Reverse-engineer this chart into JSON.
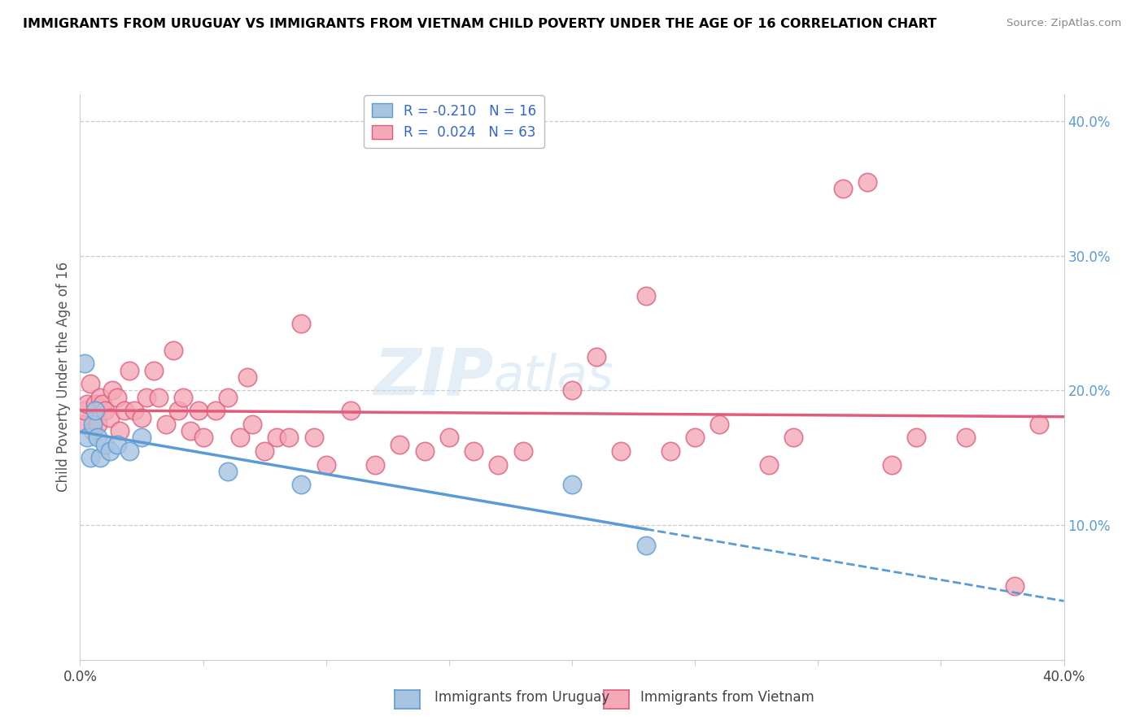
{
  "title": "IMMIGRANTS FROM URUGUAY VS IMMIGRANTS FROM VIETNAM CHILD POVERTY UNDER THE AGE OF 16 CORRELATION CHART",
  "source": "Source: ZipAtlas.com",
  "ylabel": "Child Poverty Under the Age of 16",
  "xlim": [
    0.0,
    0.4
  ],
  "ylim": [
    0.0,
    0.42
  ],
  "yticks_right": [
    0.1,
    0.2,
    0.3,
    0.4
  ],
  "legend_uruguay": "Immigrants from Uruguay",
  "legend_vietnam": "Immigrants from Vietnam",
  "R_uruguay": -0.21,
  "N_uruguay": 16,
  "R_vietnam": 0.024,
  "N_vietnam": 63,
  "color_uruguay": "#a8c4e0",
  "color_vietnam": "#f4a8b8",
  "line_color_uruguay": "#5b9bd5",
  "line_color_vietnam": "#e05c7a",
  "watermark_zip": "ZIP",
  "watermark_atlas": "atlas",
  "uruguay_x": [
    0.002,
    0.003,
    0.004,
    0.005,
    0.006,
    0.007,
    0.008,
    0.01,
    0.012,
    0.015,
    0.02,
    0.025,
    0.06,
    0.09,
    0.2,
    0.23
  ],
  "uruguay_y": [
    0.22,
    0.165,
    0.15,
    0.175,
    0.185,
    0.165,
    0.15,
    0.16,
    0.155,
    0.16,
    0.155,
    0.165,
    0.14,
    0.13,
    0.13,
    0.085
  ],
  "vietnam_x": [
    0.001,
    0.002,
    0.003,
    0.004,
    0.005,
    0.006,
    0.007,
    0.008,
    0.009,
    0.01,
    0.012,
    0.013,
    0.015,
    0.016,
    0.018,
    0.02,
    0.022,
    0.025,
    0.027,
    0.03,
    0.032,
    0.035,
    0.038,
    0.04,
    0.042,
    0.045,
    0.048,
    0.05,
    0.055,
    0.06,
    0.065,
    0.068,
    0.07,
    0.075,
    0.08,
    0.085,
    0.09,
    0.095,
    0.1,
    0.11,
    0.12,
    0.13,
    0.14,
    0.15,
    0.16,
    0.17,
    0.18,
    0.2,
    0.21,
    0.22,
    0.23,
    0.24,
    0.25,
    0.26,
    0.28,
    0.29,
    0.31,
    0.32,
    0.33,
    0.34,
    0.36,
    0.38,
    0.39
  ],
  "vietnam_y": [
    0.175,
    0.185,
    0.19,
    0.205,
    0.17,
    0.19,
    0.175,
    0.195,
    0.19,
    0.185,
    0.18,
    0.2,
    0.195,
    0.17,
    0.185,
    0.215,
    0.185,
    0.18,
    0.195,
    0.215,
    0.195,
    0.175,
    0.23,
    0.185,
    0.195,
    0.17,
    0.185,
    0.165,
    0.185,
    0.195,
    0.165,
    0.21,
    0.175,
    0.155,
    0.165,
    0.165,
    0.25,
    0.165,
    0.145,
    0.185,
    0.145,
    0.16,
    0.155,
    0.165,
    0.155,
    0.145,
    0.155,
    0.2,
    0.225,
    0.155,
    0.27,
    0.155,
    0.165,
    0.175,
    0.145,
    0.165,
    0.35,
    0.355,
    0.145,
    0.165,
    0.165,
    0.055,
    0.175
  ]
}
